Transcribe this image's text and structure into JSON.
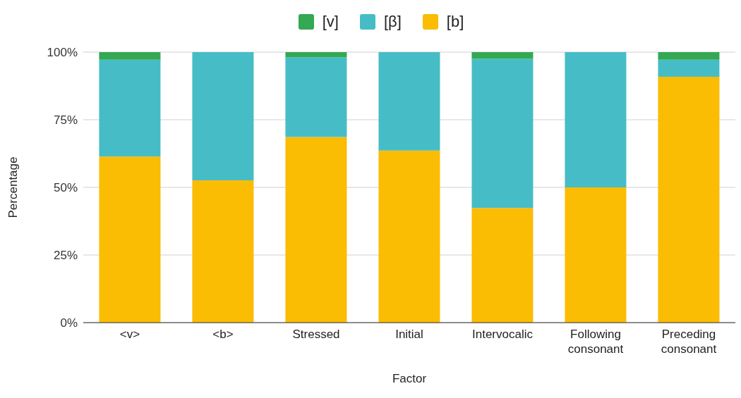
{
  "chart_data": {
    "type": "bar",
    "stacked": true,
    "xlabel": "Factor",
    "ylabel": "Percentage",
    "categories": [
      "<v>",
      "<b>",
      "Stressed",
      "Initial",
      "Intervocalic",
      "Following consonant",
      "Preceding consonant"
    ],
    "series": [
      {
        "name": "[b]",
        "color": "#fbbc04",
        "values": [
          61.4,
          52.6,
          68.6,
          63.6,
          42.4,
          50,
          90.9
        ]
      },
      {
        "name": "[β]",
        "color": "#46bdc6",
        "values": [
          35.8,
          47.4,
          29.5,
          36.4,
          55.1,
          50,
          6.3
        ]
      },
      {
        "name": "[v]",
        "color": "#34a853",
        "values": [
          2.8,
          0,
          1.9,
          0,
          2.5,
          0,
          2.8
        ]
      }
    ],
    "ylim": [
      0,
      100
    ],
    "yticks": [
      {
        "value": 0,
        "label": "0%"
      },
      {
        "value": 25,
        "label": "25%"
      },
      {
        "value": 50,
        "label": "50%"
      },
      {
        "value": 75,
        "label": "75%"
      },
      {
        "value": 100,
        "label": "100%"
      }
    ],
    "grid": "y",
    "legend": "top"
  }
}
